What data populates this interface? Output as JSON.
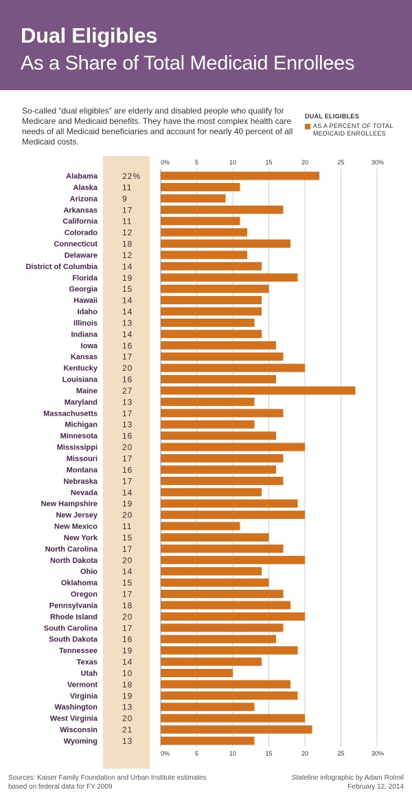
{
  "header": {
    "title": "Dual Eligibles",
    "subtitle": "As a Share of Total Medicaid Enrollees"
  },
  "intro": "So-called “dual eligibles” are elderly and disabled people who qualify for Medicare and Medicaid benefits. They have the most complex health care needs of all Medicaid beneficiaries and account for nearly 40 percent of all Medicaid costs.",
  "legend": {
    "title": "DUAL ELIGIBLES",
    "label": "AS A PERCENT OF TOTAL MEDICAID ENROLLEES"
  },
  "colors": {
    "header": "#7a5482",
    "bar": "#d2721f",
    "state_label": "#4a2150",
    "value_column": "#f2dfc3",
    "grid": "#cccccc"
  },
  "footer": {
    "sources_line1": "Sources: Kaiser Family Foundation and Urban Institute estimates",
    "sources_line2": "based on federal data for FY 2009",
    "credit_source": "Stateline",
    "credit_rest": " infographic by Adam Rotmil",
    "date": "February 12, 2014"
  },
  "chart_data": {
    "type": "bar",
    "orientation": "horizontal",
    "categories": [
      "Alabama",
      "Alaska",
      "Arizona",
      "Arkansas",
      "California",
      "Colorado",
      "Connecticut",
      "Delaware",
      "District of Columbia",
      "Florida",
      "Georgia",
      "Hawaii",
      "Idaho",
      "Illinois",
      "Indiana",
      "Iowa",
      "Kansas",
      "Kentucky",
      "Louisiana",
      "Maine",
      "Maryland",
      "Massachusetts",
      "Michigan",
      "Minnesota",
      "Mississippi",
      "Missouri",
      "Montana",
      "Nebraska",
      "Nevada",
      "New Hampshire",
      "New Jersey",
      "New Mexico",
      "New York",
      "North Carolina",
      "North Dakota",
      "Ohio",
      "Oklahoma",
      "Oregon",
      "Pennsylvania",
      "Rhode Island",
      "South Carolina",
      "South Dakota",
      "Tennessee",
      "Texas",
      "Utah",
      "Vermont",
      "Virginia",
      "Washington",
      "West Virginia",
      "Wisconsin",
      "Wyoming"
    ],
    "values": [
      22,
      11,
      9,
      17,
      11,
      12,
      18,
      12,
      14,
      19,
      15,
      14,
      14,
      13,
      14,
      16,
      17,
      20,
      16,
      27,
      13,
      17,
      13,
      16,
      20,
      17,
      16,
      17,
      14,
      19,
      20,
      11,
      15,
      17,
      20,
      14,
      15,
      17,
      18,
      20,
      17,
      16,
      19,
      14,
      10,
      18,
      19,
      13,
      20,
      21,
      13
    ],
    "value_labels": [
      "22%",
      "11",
      "9",
      "17",
      "11",
      "12",
      "18",
      "12",
      "14",
      "19",
      "15",
      "14",
      "14",
      "13",
      "14",
      "16",
      "17",
      "20",
      "16",
      "27",
      "13",
      "17",
      "13",
      "16",
      "20",
      "17",
      "16",
      "17",
      "14",
      "19",
      "20",
      "11",
      "15",
      "17",
      "20",
      "14",
      "15",
      "17",
      "18",
      "20",
      "17",
      "16",
      "19",
      "14",
      "10",
      "18",
      "19",
      "13",
      "20",
      "21",
      "13"
    ],
    "xticks": [
      0,
      5,
      10,
      15,
      20,
      25,
      30
    ],
    "xtick_labels": [
      "0%",
      "5",
      "10",
      "15",
      "20",
      "25",
      "30%"
    ],
    "xlim": [
      0,
      30
    ],
    "grid": true
  }
}
